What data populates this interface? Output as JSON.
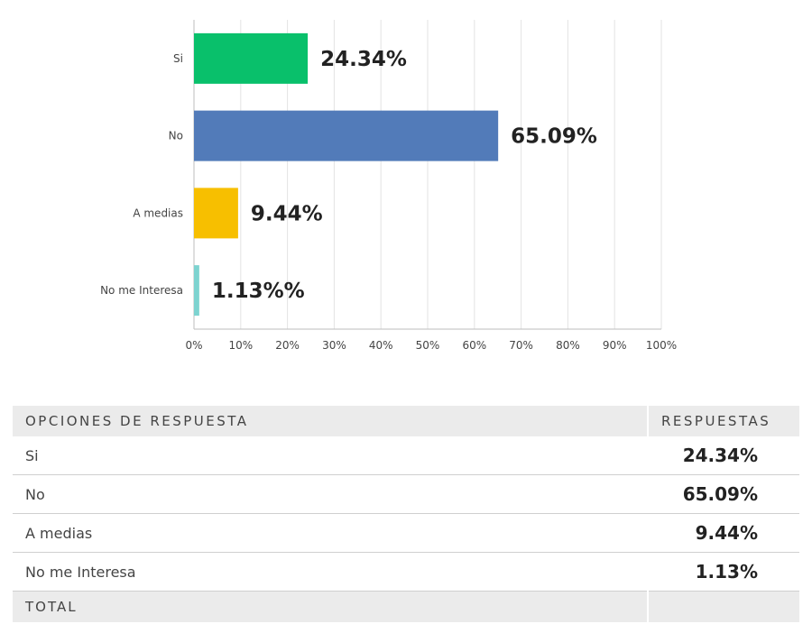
{
  "chart_data": {
    "type": "bar",
    "orientation": "horizontal",
    "categories": [
      "Si",
      "No",
      "A medias",
      "No me Interesa"
    ],
    "values": [
      24.34,
      65.09,
      9.44,
      1.13
    ],
    "data_labels": [
      "24.34%",
      "65.09%",
      "9.44%",
      "1.13%%"
    ],
    "colors": [
      "#09c06b",
      "#527bb9",
      "#f7bf00",
      "#7dd3d0"
    ],
    "x_ticks": [
      "0%",
      "10%",
      "20%",
      "30%",
      "40%",
      "50%",
      "60%",
      "70%",
      "80%",
      "90%",
      "100%"
    ],
    "xlim": [
      0,
      100
    ],
    "grid": true
  },
  "table": {
    "header": {
      "option": "OPCIONES DE RESPUESTA",
      "responses": "RESPUESTAS"
    },
    "rows": [
      {
        "option": "Si",
        "value": "24.34%"
      },
      {
        "option": "No",
        "value": "65.09%"
      },
      {
        "option": "A medias",
        "value": "9.44%"
      },
      {
        "option": "No me Interesa",
        "value": "1.13%"
      }
    ],
    "total_label": "TOTAL",
    "total_value": ""
  }
}
